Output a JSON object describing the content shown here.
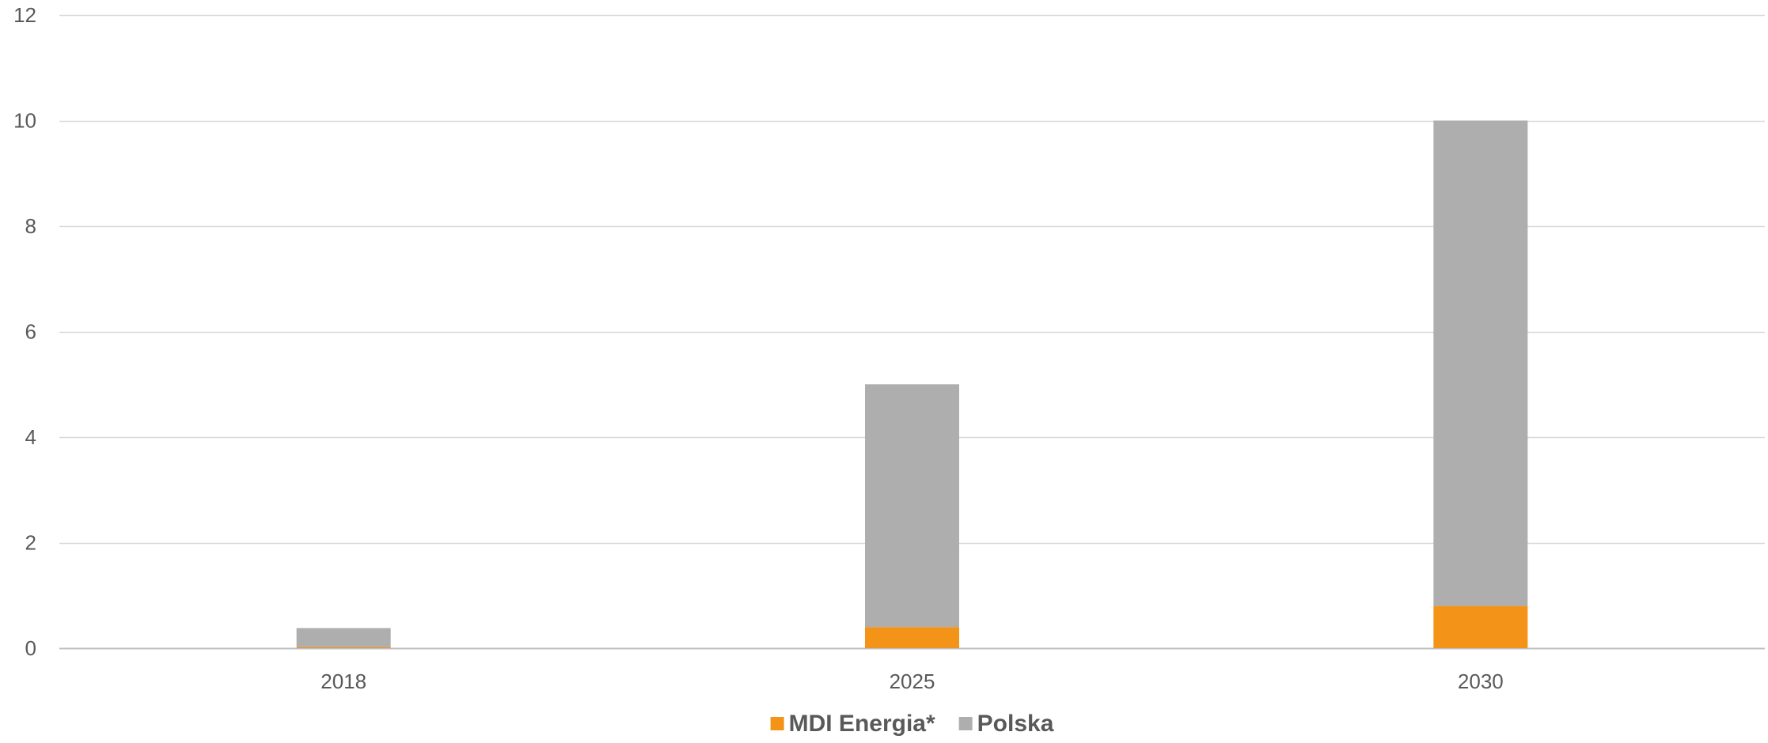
{
  "chart_data": {
    "type": "bar",
    "stacked": true,
    "categories": [
      "2018",
      "2025",
      "2030"
    ],
    "series": [
      {
        "name": "MDI Energia*",
        "values": [
          0.02,
          0.4,
          0.8
        ],
        "color": "#F39318"
      },
      {
        "name": "Polska",
        "values": [
          0.36,
          4.6,
          9.2
        ],
        "color": "#AEAEAE"
      }
    ],
    "ylim": [
      0,
      12
    ],
    "yticks": [
      0,
      2,
      4,
      6,
      8,
      10,
      12
    ],
    "title": "",
    "xlabel": "",
    "ylabel": "",
    "grid": true,
    "legend": "bottom-center"
  }
}
